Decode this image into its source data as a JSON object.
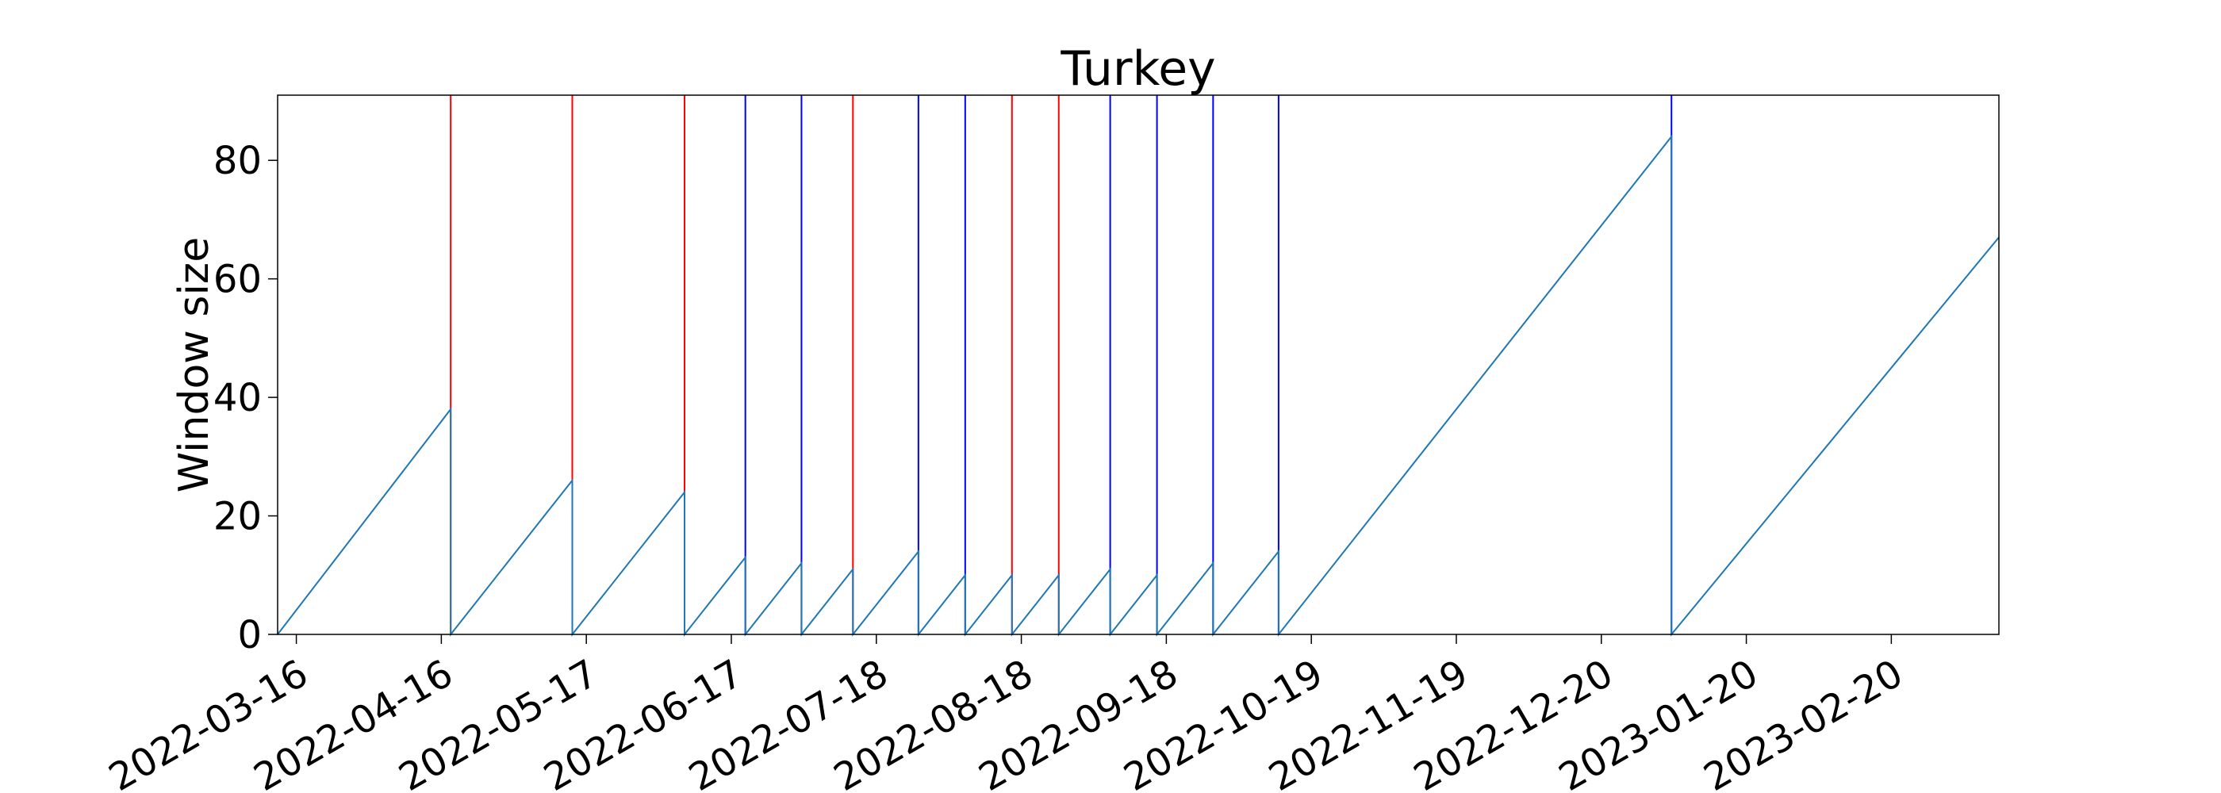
{
  "chart_data": {
    "type": "line",
    "title": "Turkey",
    "xlabel": "",
    "ylabel": "Window size",
    "xlim": [
      "2022-03-12",
      "2023-03-15"
    ],
    "ylim": [
      0,
      91
    ],
    "x_ticks": [
      "2022-03-16",
      "2022-04-16",
      "2022-05-17",
      "2022-06-17",
      "2022-07-18",
      "2022-08-18",
      "2022-09-18",
      "2022-10-19",
      "2022-11-19",
      "2022-12-20",
      "2023-01-20",
      "2023-02-20"
    ],
    "y_ticks": [
      0,
      20,
      40,
      60,
      80
    ],
    "grid": false,
    "series": [
      {
        "color": "#1f77b4",
        "points": [
          [
            "2022-03-12",
            0
          ],
          [
            "2022-04-18",
            38
          ],
          [
            "2022-04-18",
            0
          ],
          [
            "2022-05-14",
            26
          ],
          [
            "2022-05-14",
            0
          ],
          [
            "2022-06-07",
            24
          ],
          [
            "2022-06-07",
            0
          ],
          [
            "2022-06-20",
            13
          ],
          [
            "2022-06-20",
            0
          ],
          [
            "2022-07-02",
            12
          ],
          [
            "2022-07-02",
            0
          ],
          [
            "2022-07-13",
            11
          ],
          [
            "2022-07-13",
            0
          ],
          [
            "2022-07-27",
            14
          ],
          [
            "2022-07-27",
            0
          ],
          [
            "2022-08-06",
            10
          ],
          [
            "2022-08-06",
            0
          ],
          [
            "2022-08-16",
            10
          ],
          [
            "2022-08-16",
            0
          ],
          [
            "2022-08-26",
            10
          ],
          [
            "2022-08-26",
            0
          ],
          [
            "2022-09-06",
            11
          ],
          [
            "2022-09-06",
            0
          ],
          [
            "2022-09-16",
            10
          ],
          [
            "2022-09-16",
            0
          ],
          [
            "2022-09-28",
            12
          ],
          [
            "2022-09-28",
            0
          ],
          [
            "2022-10-12",
            14
          ],
          [
            "2022-10-12",
            0
          ],
          [
            "2023-01-04",
            84
          ],
          [
            "2023-01-04",
            0
          ],
          [
            "2023-03-15",
            67
          ]
        ]
      }
    ],
    "vertical_lines": [
      {
        "x": "2022-04-18",
        "color": "#ff0000"
      },
      {
        "x": "2022-05-14",
        "color": "#ff0000"
      },
      {
        "x": "2022-06-07",
        "color": "#ff0000"
      },
      {
        "x": "2022-06-20",
        "color": "#0000ff"
      },
      {
        "x": "2022-07-02",
        "color": "#0000ff"
      },
      {
        "x": "2022-07-13",
        "color": "#ff0000"
      },
      {
        "x": "2022-07-27",
        "color": "#0000ff"
      },
      {
        "x": "2022-08-06",
        "color": "#0000ff"
      },
      {
        "x": "2022-08-16",
        "color": "#ff0000"
      },
      {
        "x": "2022-08-26",
        "color": "#ff0000"
      },
      {
        "x": "2022-09-06",
        "color": "#0000ff"
      },
      {
        "x": "2022-09-16",
        "color": "#0000ff"
      },
      {
        "x": "2022-09-28",
        "color": "#0000ff"
      },
      {
        "x": "2022-10-12",
        "color": "#0000ff"
      },
      {
        "x": "2023-01-04",
        "color": "#0000ff"
      }
    ]
  }
}
